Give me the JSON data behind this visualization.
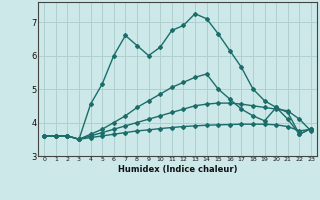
{
  "xlabel": "Humidex (Indice chaleur)",
  "bg_color": "#cce8e8",
  "grid_color": "#b0d0d0",
  "line_color": "#1a6e6a",
  "xlim": [
    -0.5,
    23.5
  ],
  "ylim": [
    3.0,
    7.6
  ],
  "xticks": [
    0,
    1,
    2,
    3,
    4,
    5,
    6,
    7,
    8,
    9,
    10,
    11,
    12,
    13,
    14,
    15,
    16,
    17,
    18,
    19,
    20,
    21,
    22,
    23
  ],
  "yticks": [
    3,
    4,
    5,
    6,
    7
  ],
  "series": [
    {
      "x": [
        0,
        1,
        2,
        3,
        4,
        5,
        6,
        7,
        8,
        9,
        10,
        11,
        12,
        13,
        14,
        15,
        16,
        17,
        18,
        19,
        20,
        21,
        22,
        23
      ],
      "y": [
        3.6,
        3.6,
        3.6,
        3.5,
        3.55,
        3.6,
        3.65,
        3.7,
        3.75,
        3.78,
        3.82,
        3.85,
        3.88,
        3.9,
        3.92,
        3.93,
        3.94,
        3.95,
        3.95,
        3.95,
        3.93,
        3.88,
        3.75,
        3.8
      ]
    },
    {
      "x": [
        0,
        1,
        2,
        3,
        4,
        5,
        6,
        7,
        8,
        9,
        10,
        11,
        12,
        13,
        14,
        15,
        16,
        17,
        18,
        19,
        20,
        21,
        22,
        23
      ],
      "y": [
        3.6,
        3.6,
        3.6,
        3.5,
        3.6,
        3.7,
        3.8,
        3.9,
        4.0,
        4.1,
        4.2,
        4.3,
        4.4,
        4.5,
        4.55,
        4.58,
        4.58,
        4.55,
        4.5,
        4.45,
        4.4,
        4.35,
        4.1,
        3.75
      ]
    },
    {
      "x": [
        0,
        1,
        2,
        3,
        4,
        5,
        6,
        7,
        8,
        9,
        10,
        11,
        12,
        13,
        14,
        15,
        16,
        17,
        18,
        19,
        20,
        21,
        22,
        23
      ],
      "y": [
        3.6,
        3.6,
        3.6,
        3.5,
        3.65,
        3.8,
        4.0,
        4.2,
        4.45,
        4.65,
        4.85,
        5.05,
        5.2,
        5.35,
        5.45,
        5.0,
        4.7,
        4.4,
        4.2,
        4.05,
        4.45,
        4.3,
        3.65,
        3.82
      ]
    },
    {
      "x": [
        0,
        1,
        2,
        3,
        4,
        5,
        6,
        7,
        8,
        9,
        10,
        11,
        12,
        13,
        14,
        15,
        16,
        17,
        18,
        19,
        20,
        21,
        22,
        23
      ],
      "y": [
        3.6,
        3.6,
        3.6,
        3.5,
        4.55,
        5.15,
        6.0,
        6.6,
        6.3,
        6.0,
        6.25,
        6.75,
        6.9,
        7.25,
        7.1,
        6.65,
        6.15,
        5.65,
        5.0,
        4.65,
        4.45,
        4.1,
        3.65,
        3.82
      ]
    }
  ]
}
